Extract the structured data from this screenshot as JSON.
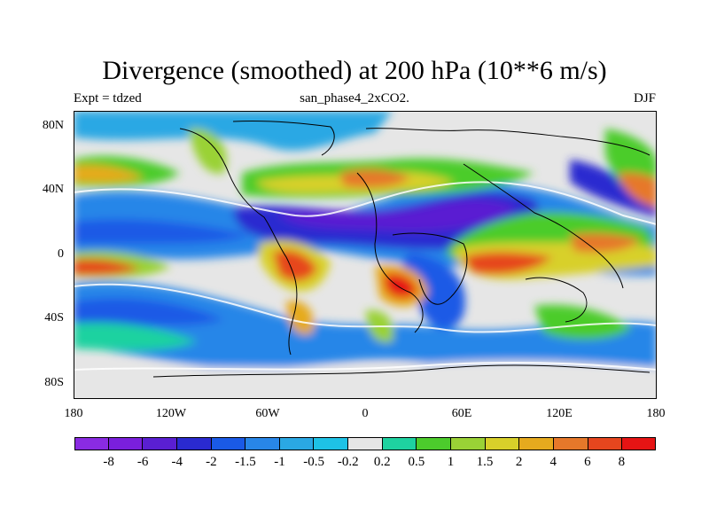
{
  "title": "Divergence (smoothed) at 200 hPa (10**6 m/s)",
  "left_label": "Expt = tdzed",
  "center_label": "san_phase4_2xCO2.",
  "right_label": "DJF",
  "lat_labels": [
    "80N",
    "40N",
    "0",
    "40S",
    "80S"
  ],
  "lon_labels": [
    "180",
    "120W",
    "60W",
    "0",
    "60E",
    "120E",
    "180"
  ],
  "colorbar": {
    "colors": [
      "#8a2be2",
      "#7a1fdc",
      "#5a1fd2",
      "#2a2ad0",
      "#1a5ae6",
      "#2886e8",
      "#2aa8e4",
      "#1ec2e6",
      "#e6e6e6",
      "#1ed2a0",
      "#4ccc2c",
      "#9ad236",
      "#d8d02a",
      "#e6aa1e",
      "#e6782a",
      "#e6461e",
      "#e61414"
    ],
    "labels": [
      "-8",
      "-6",
      "-4",
      "-2",
      "-1.5",
      "-1",
      "-0.5",
      "-0.2",
      "0.2",
      "0.5",
      "1",
      "1.5",
      "2",
      "4",
      "6",
      "8"
    ]
  },
  "chart_data": {
    "type": "heatmap",
    "title": "Divergence (smoothed) at 200 hPa (10**6 m/s)",
    "subtitle": "san_phase4_2xCO2.",
    "expt": "tdzed",
    "season": "DJF",
    "projection": "cylindrical equidistant",
    "lon_range": [
      -180,
      180
    ],
    "lat_range": [
      -90,
      90
    ],
    "contour_levels": [
      -8,
      -6,
      -4,
      -2,
      -1.5,
      -1,
      -0.5,
      -0.2,
      0.2,
      0.5,
      1,
      1.5,
      2,
      4,
      6,
      8
    ]
  }
}
